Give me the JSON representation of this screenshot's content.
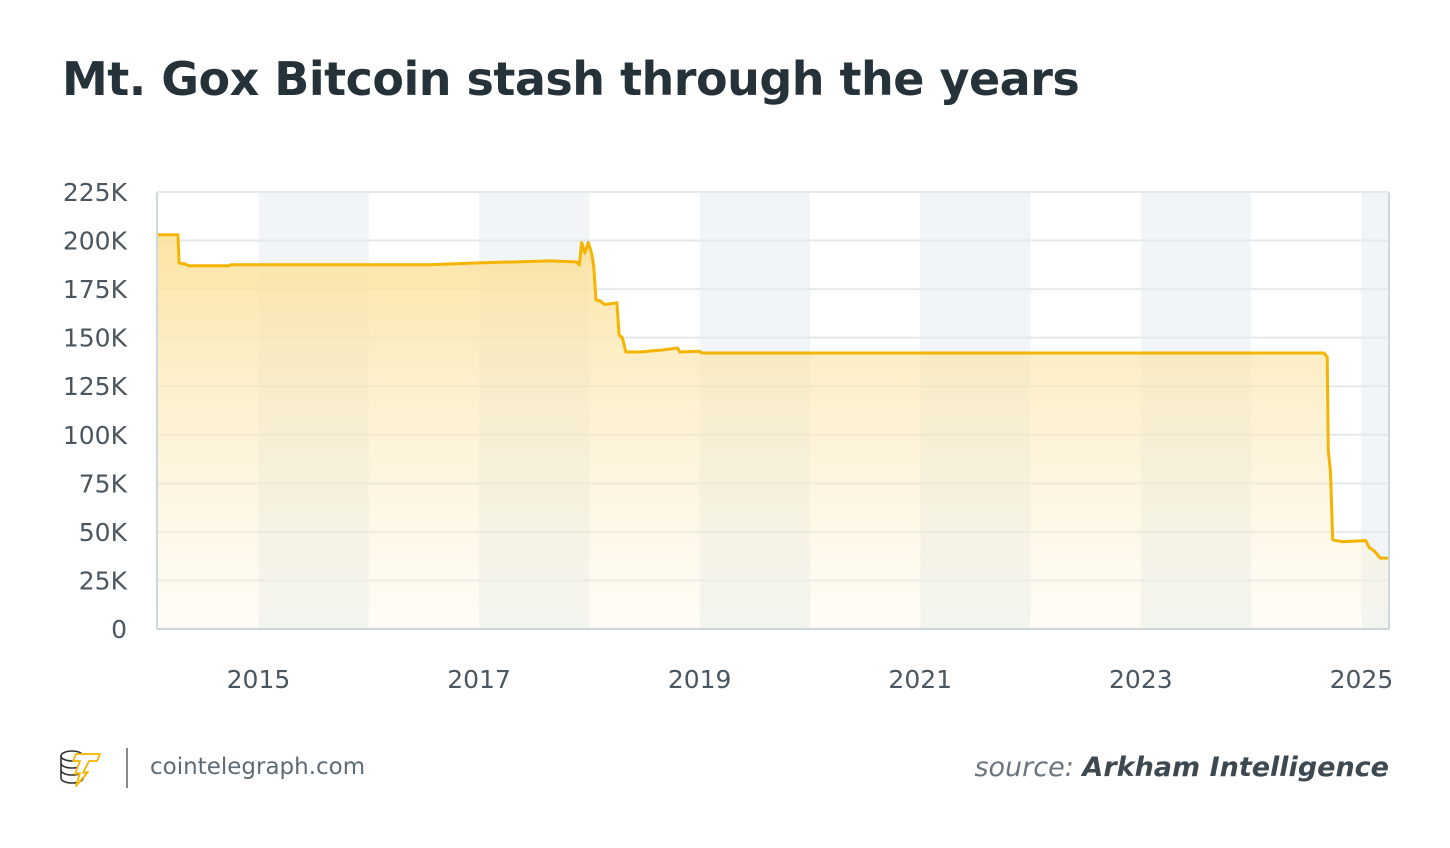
{
  "title": "Mt. Gox Bitcoin stash through the years",
  "footer": {
    "site": "cointelegraph.com",
    "source_prefix": "source:",
    "source_name": "Arkham Intelligence",
    "logo_icon": "cointelegraph-logo-icon"
  },
  "colors": {
    "line": "#f5b400",
    "fill_top": "#fcdf93",
    "band": "#f1f5f7",
    "grid": "#e3eaee",
    "axis": "#cdd8de"
  },
  "chart_data": {
    "type": "area",
    "title": "Mt. Gox Bitcoin stash through the years",
    "xlabel": "",
    "ylabel": "",
    "xlim": [
      2014.08,
      2025.25
    ],
    "ylim": [
      0,
      225000
    ],
    "grid": true,
    "alternating_year_bands": true,
    "x_ticks": [
      2015,
      2017,
      2019,
      2021,
      2023,
      2025
    ],
    "x_tick_labels": [
      "2015",
      "2017",
      "2019",
      "2021",
      "2023",
      "2025"
    ],
    "y_ticks": [
      0,
      25000,
      50000,
      75000,
      100000,
      125000,
      150000,
      175000,
      200000,
      225000
    ],
    "y_tick_labels": [
      "0",
      "25K",
      "50K",
      "75K",
      "100K",
      "125K",
      "150K",
      "175K",
      "200K",
      "225K"
    ],
    "x": [
      2014.08,
      2014.27,
      2014.28,
      2014.33,
      2014.37,
      2014.73,
      2014.75,
      2016.55,
      2017.0,
      2017.64,
      2017.88,
      2017.91,
      2017.93,
      2017.96,
      2017.99,
      2018.02,
      2018.04,
      2018.06,
      2018.1,
      2018.14,
      2018.25,
      2018.27,
      2018.3,
      2018.33,
      2018.46,
      2018.67,
      2018.8,
      2018.82,
      2019.0,
      2019.02,
      2024.66,
      2024.69,
      2024.7,
      2024.72,
      2024.74,
      2024.79,
      2024.83,
      2025.04,
      2025.07,
      2025.12,
      2025.17,
      2025.25
    ],
    "values": [
      203000,
      203000,
      188400,
      188000,
      187000,
      187000,
      187500,
      187500,
      188500,
      189500,
      189000,
      187500,
      199000,
      193500,
      199000,
      193500,
      186400,
      169400,
      168900,
      167000,
      168000,
      151400,
      150000,
      142600,
      142600,
      143700,
      144700,
      142600,
      143000,
      142100,
      142100,
      140000,
      92000,
      81000,
      46000,
      45300,
      45000,
      45500,
      42000,
      40000,
      36500,
      36500
    ]
  }
}
